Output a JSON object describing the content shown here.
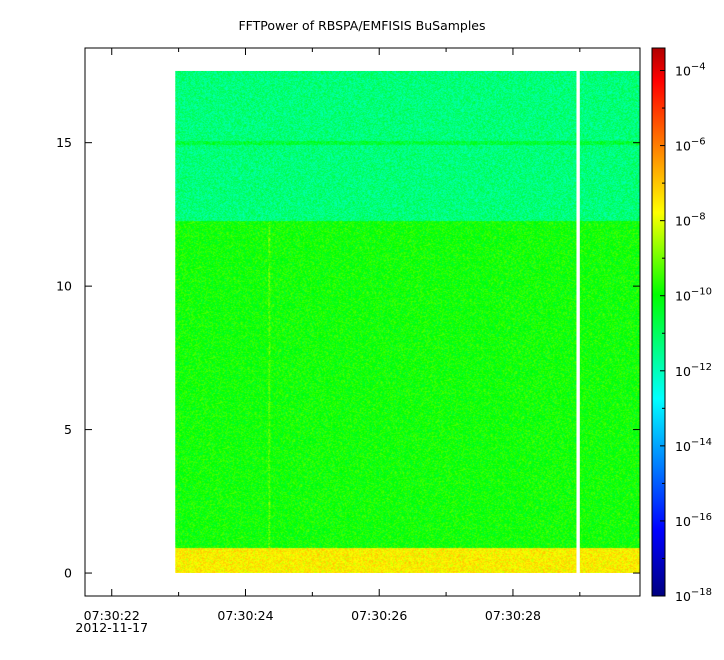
{
  "chart_data": {
    "type": "heatmap",
    "title": "FFTPower of RBSPA/EMFISIS  BuSamples",
    "xlabel": "",
    "ylabel": "",
    "x_ticks": [
      {
        "value": 0,
        "label": "07:30:22",
        "sublabel": "2012-11-17"
      },
      {
        "value": 2,
        "label": "07:30:24"
      },
      {
        "value": 4,
        "label": "07:30:26"
      },
      {
        "value": 6,
        "label": "07:30:28"
      }
    ],
    "x_minor_ticks": [
      1,
      3,
      5,
      7
    ],
    "xlim": [
      -0.4,
      7.9
    ],
    "y_ticks": [
      0,
      5,
      10,
      15
    ],
    "ylim": [
      -0.8,
      18.3
    ],
    "data_extent": {
      "x": [
        0.95,
        7.9
      ],
      "y": [
        0,
        17.5
      ]
    },
    "gap_x": [
      6.95,
      7.0
    ],
    "background_level_log10": -10.5,
    "bands": [
      {
        "y": [
          0.0,
          0.9
        ],
        "level_log10": -7.6,
        "description_text": ""
      },
      {
        "y": [
          0.9,
          12.3
        ],
        "level_log10": -9.9
      },
      {
        "y": [
          12.3,
          17.5
        ],
        "level_log10": -11.3
      }
    ],
    "lines": [
      {
        "y": 15.0,
        "level_log10": -10.6
      }
    ],
    "vertical_streaks": [
      {
        "x": 2.35,
        "y": [
          0.9,
          12.3
        ],
        "level_log10": -9.3
      }
    ],
    "colorbar": {
      "scale": "log",
      "range_log10": [
        -18,
        -3.4
      ],
      "tick_exponents": [
        -18,
        -16,
        -14,
        -12,
        -10,
        -8,
        -6,
        -4
      ],
      "tick_base": "10",
      "colors": [
        "#000080",
        "#0000ff",
        "#00ffff",
        "#00ff00",
        "#ffff00",
        "#ff7f00",
        "#ff0000",
        "#b00000"
      ],
      "color_stops": [
        0,
        0.12,
        0.36,
        0.55,
        0.7,
        0.82,
        0.94,
        1
      ]
    }
  }
}
